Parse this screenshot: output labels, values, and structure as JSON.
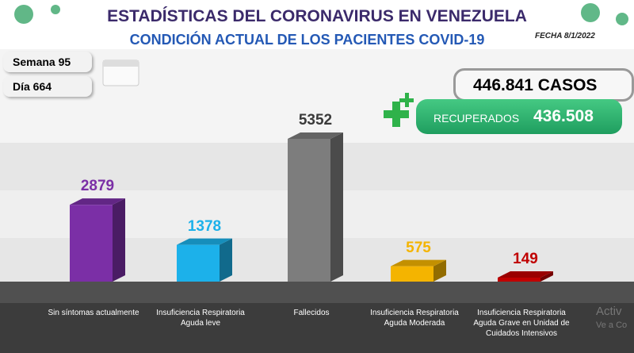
{
  "header": {
    "title": "ESTADÍSTICAS DEL CORONAVIRUS EN VENEZUELA",
    "subtitle": "CONDICIÓN ACTUAL DE LOS PACIENTES COVID-19",
    "date": "FECHA 8/1/2022"
  },
  "info": {
    "week": "Semana 95",
    "day": "Día 664",
    "cases": "446.841 CASOS",
    "recovered_label": "RECUPERADOS",
    "recovered": "436.508"
  },
  "chart_data": {
    "type": "bar",
    "categories": [
      "Sin síntomas actualmente",
      "Insuficiencia Respiratoria Aguda leve",
      "Fallecidos",
      "Insuficiencia Respiratoria Aguda Moderada",
      "Insuficiencia Respiratoria Aguda Grave en Unidad de Cuidados Intensivos"
    ],
    "values": [
      2879,
      1378,
      5352,
      575,
      149
    ],
    "colors": [
      "#7b2fa6",
      "#1cb1ea",
      "#7d7d7d",
      "#f4b400",
      "#c00000"
    ]
  },
  "watermark": [
    "Activ",
    "Ve a Co"
  ]
}
